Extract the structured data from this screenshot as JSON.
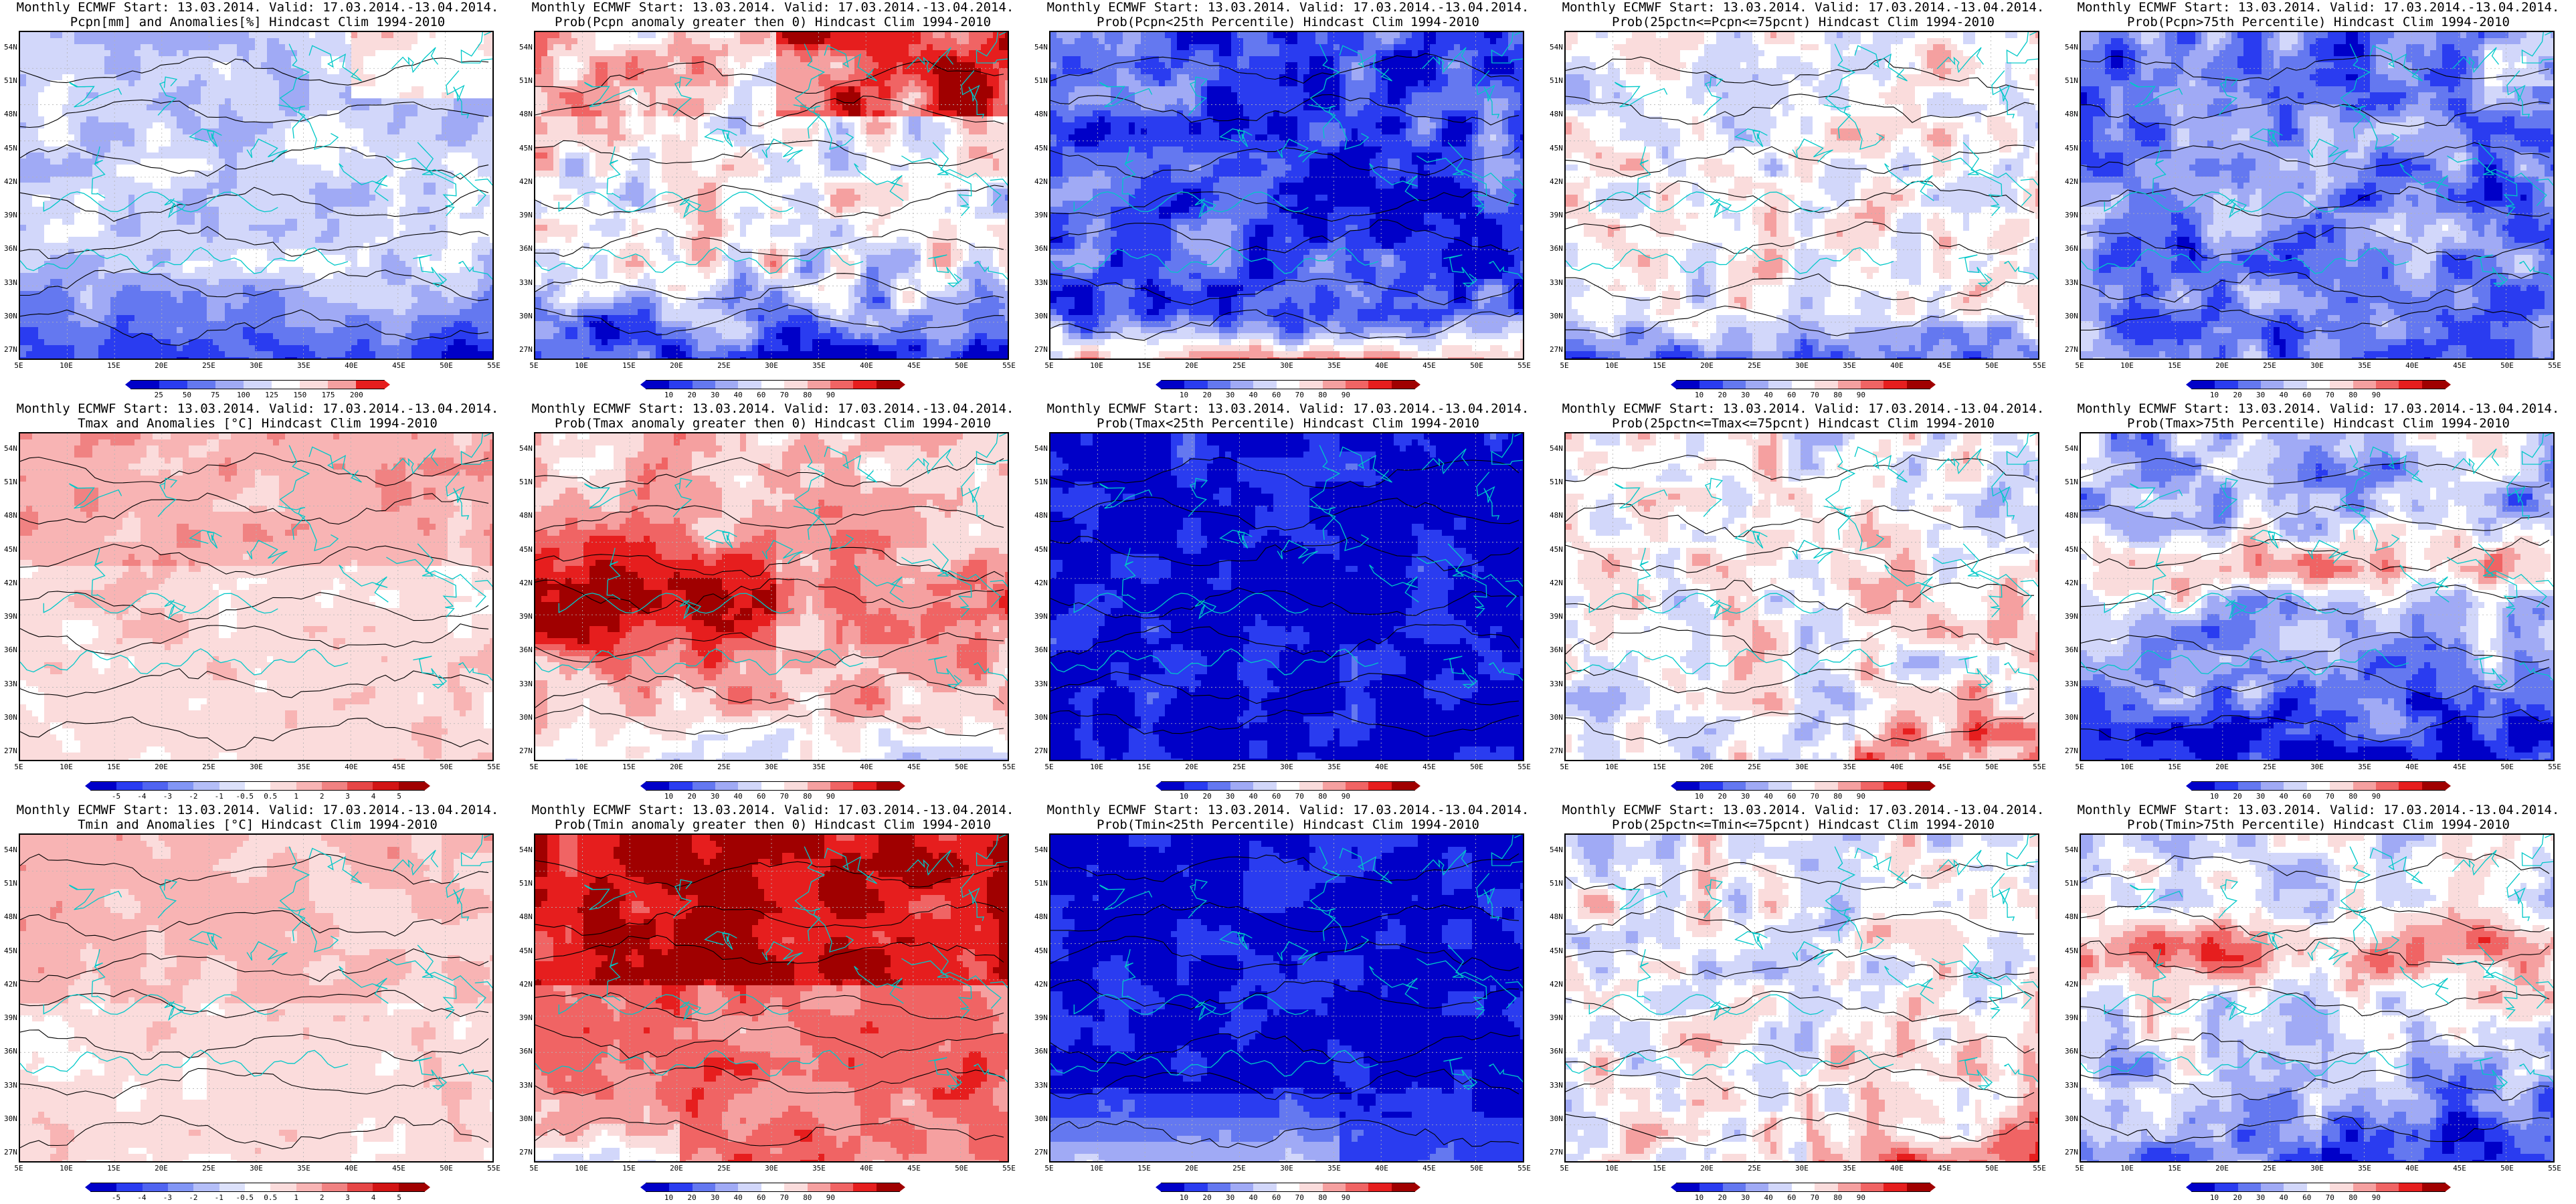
{
  "panels": [
    {
      "line1": "Monthly ECMWF Start: 13.03.2014. Valid: 17.03.2014.-13.04.2014.",
      "line2": "Pcpn[mm] and Anomalies[%] Hindcast Clim 1994-2010",
      "scale": "pcpn",
      "pattern": "pcpn_anom",
      "colorbar": [
        "25",
        "50",
        "75",
        "100",
        "125",
        "150",
        "175",
        "200"
      ]
    },
    {
      "line1": "Monthly ECMWF Start: 13.03.2014. Valid: 17.03.2014.-13.04.2014.",
      "line2": "Prob(Pcpn anomaly greater then 0) Hindcast Clim 1994-2010",
      "scale": "prob",
      "pattern": "pcpn_prob",
      "colorbar": [
        "10",
        "20",
        "30",
        "40",
        "60",
        "70",
        "80",
        "90"
      ]
    },
    {
      "line1": "Monthly ECMWF Start: 13.03.2014. Valid: 17.03.2014.-13.04.2014.",
      "line2": "Prob(Pcpn<25th Percentile) Hindcast Clim 1994-2010",
      "scale": "prob",
      "pattern": "pcpn_low",
      "colorbar": [
        "10",
        "20",
        "30",
        "40",
        "60",
        "70",
        "80",
        "90"
      ]
    },
    {
      "line1": "Monthly ECMWF Start: 13.03.2014. Valid: 17.03.2014.-13.04.2014.",
      "line2": "Prob(25pctn<=Pcpn<=75pcnt) Hindcast Clim 1994-2010",
      "scale": "prob",
      "pattern": "pcpn_mid",
      "colorbar": [
        "10",
        "20",
        "30",
        "40",
        "60",
        "70",
        "80",
        "90"
      ]
    },
    {
      "line1": "Monthly ECMWF Start: 13.03.2014. Valid: 17.03.2014.-13.04.2014.",
      "line2": "Prob(Pcpn>75th Percentile) Hindcast Clim 1994-2010",
      "scale": "prob",
      "pattern": "pcpn_high",
      "colorbar": [
        "10",
        "20",
        "30",
        "40",
        "60",
        "70",
        "80",
        "90"
      ]
    },
    {
      "line1": "Monthly ECMWF Start: 13.03.2014. Valid: 17.03.2014.-13.04.2014.",
      "line2": "Tmax and Anomalies [°C] Hindcast Clim 1994-2010",
      "scale": "temp",
      "pattern": "tmax_anom",
      "colorbar": [
        "-5",
        "-4",
        "-3",
        "-2",
        "-1",
        "-0.5",
        "0.5",
        "1",
        "2",
        "3",
        "4",
        "5"
      ]
    },
    {
      "line1": "Monthly ECMWF Start: 13.03.2014. Valid: 17.03.2014.-13.04.2014.",
      "line2": "Prob(Tmax anomaly greater then 0) Hindcast Clim 1994-2010",
      "scale": "prob",
      "pattern": "tmax_prob",
      "colorbar": [
        "10",
        "20",
        "30",
        "40",
        "60",
        "70",
        "80",
        "90"
      ]
    },
    {
      "line1": "Monthly ECMWF Start: 13.03.2014. Valid: 17.03.2014.-13.04.2014.",
      "line2": "Prob(Tmax<25th Percentile) Hindcast Clim 1994-2010",
      "scale": "prob",
      "pattern": "tmax_low",
      "colorbar": [
        "10",
        "20",
        "30",
        "40",
        "60",
        "70",
        "80",
        "90"
      ]
    },
    {
      "line1": "Monthly ECMWF Start: 13.03.2014. Valid: 17.03.2014.-13.04.2014.",
      "line2": "Prob(25pctn<=Tmax<=75pcnt) Hindcast Clim 1994-2010",
      "scale": "prob",
      "pattern": "tmax_mid",
      "colorbar": [
        "10",
        "20",
        "30",
        "40",
        "60",
        "70",
        "80",
        "90"
      ]
    },
    {
      "line1": "Monthly ECMWF Start: 13.03.2014. Valid: 17.03.2014.-13.04.2014.",
      "line2": "Prob(Tmax>75th Percentile) Hindcast Clim 1994-2010",
      "scale": "prob",
      "pattern": "tmax_high",
      "colorbar": [
        "10",
        "20",
        "30",
        "40",
        "60",
        "70",
        "80",
        "90"
      ]
    },
    {
      "line1": "Monthly ECMWF Start: 13.03.2014. Valid: 17.03.2014.-13.04.2014.",
      "line2": "Tmin and Anomalies [°C] Hindcast Clim 1994-2010",
      "scale": "temp",
      "pattern": "tmin_anom",
      "colorbar": [
        "-5",
        "-4",
        "-3",
        "-2",
        "-1",
        "-0.5",
        "0.5",
        "1",
        "2",
        "3",
        "4",
        "5"
      ]
    },
    {
      "line1": "Monthly ECMWF Start: 13.03.2014. Valid: 17.03.2014.-13.04.2014.",
      "line2": "Prob(Tmin anomaly greater then 0) Hindcast Clim 1994-2010",
      "scale": "prob",
      "pattern": "tmin_prob",
      "colorbar": [
        "10",
        "20",
        "30",
        "40",
        "60",
        "70",
        "80",
        "90"
      ]
    },
    {
      "line1": "Monthly ECMWF Start: 13.03.2014. Valid: 17.03.2014.-13.04.2014.",
      "line2": "Prob(Tmin<25th Percentile) Hindcast Clim 1994-2010",
      "scale": "prob",
      "pattern": "tmin_low",
      "colorbar": [
        "10",
        "20",
        "30",
        "40",
        "60",
        "70",
        "80",
        "90"
      ]
    },
    {
      "line1": "Monthly ECMWF Start: 13.03.2014. Valid: 17.03.2014.-13.04.2014.",
      "line2": "Prob(25pctn<=Tmin<=75pcnt) Hindcast Clim 1994-2010",
      "scale": "prob",
      "pattern": "tmin_mid",
      "colorbar": [
        "10",
        "20",
        "30",
        "40",
        "60",
        "70",
        "80",
        "90"
      ]
    },
    {
      "line1": "Monthly ECMWF Start: 13.03.2014. Valid: 17.03.2014.-13.04.2014.",
      "line2": "Prob(Tmin>75th Percentile) Hindcast Clim 1994-2010",
      "scale": "prob",
      "pattern": "tmin_high",
      "colorbar": [
        "10",
        "20",
        "30",
        "40",
        "60",
        "70",
        "80",
        "90"
      ]
    }
  ],
  "lat_labels": [
    "54N",
    "51N",
    "48N",
    "45N",
    "42N",
    "39N",
    "36N",
    "33N",
    "30N",
    "27N"
  ],
  "lon_labels": [
    "5E",
    "10E",
    "15E",
    "20E",
    "25E",
    "30E",
    "35E",
    "40E",
    "45E",
    "50E",
    "55E"
  ],
  "palettes": {
    "prob": [
      "#0000c8",
      "#2a3cf0",
      "#6478f0",
      "#a0aaf5",
      "#d2d7fa",
      "#ffffff",
      "#fadcdc",
      "#f5a0a0",
      "#f06464",
      "#e61e1e",
      "#a00000"
    ],
    "temp": [
      "#0000c8",
      "#2a3cf0",
      "#5064f0",
      "#8296f5",
      "#b4bef8",
      "#dce1fb",
      "#ffffff",
      "#fbdcdc",
      "#f8b4b4",
      "#f08282",
      "#e64646",
      "#d21414",
      "#a00000"
    ],
    "pcpn": [
      "#0000c8",
      "#2a3cf0",
      "#6478f0",
      "#a0aaf5",
      "#d2d7fa",
      "#ffffff",
      "#fadcdc",
      "#f5a0a0",
      "#e61e1e"
    ]
  },
  "map_colors": {
    "coastline": "#00c8c8",
    "contour": "#000000",
    "grid": "#b4b4b4"
  }
}
